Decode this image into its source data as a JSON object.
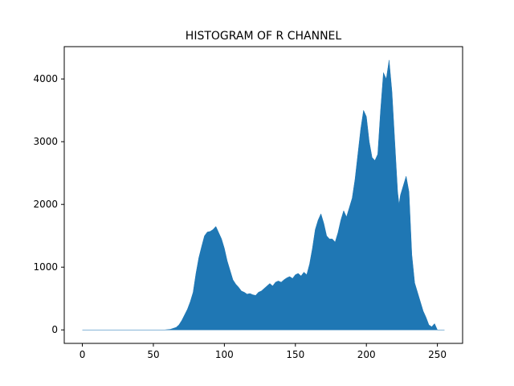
{
  "chart_data": {
    "type": "area",
    "title": "HISTOGRAM OF R CHANNEL",
    "xlabel": "",
    "ylabel": "",
    "xlim": [
      -12.75,
      267.75
    ],
    "ylim": [
      -215,
      4515
    ],
    "xticks": [
      0,
      50,
      100,
      150,
      200,
      250
    ],
    "yticks": [
      0,
      1000,
      2000,
      3000,
      4000
    ],
    "grid": false,
    "fill_color": "#1f77b4",
    "x": [
      0,
      58,
      60,
      62,
      64,
      66,
      68,
      70,
      72,
      74,
      76,
      78,
      80,
      82,
      84,
      86,
      88,
      90,
      92,
      94,
      96,
      98,
      100,
      102,
      104,
      106,
      108,
      110,
      112,
      114,
      116,
      118,
      120,
      122,
      124,
      126,
      128,
      130,
      132,
      134,
      136,
      138,
      140,
      142,
      144,
      146,
      148,
      150,
      152,
      154,
      156,
      158,
      160,
      162,
      164,
      166,
      168,
      170,
      172,
      174,
      176,
      178,
      180,
      182,
      184,
      186,
      188,
      190,
      192,
      194,
      196,
      198,
      200,
      202,
      204,
      206,
      208,
      210,
      212,
      214,
      216,
      218,
      220,
      221,
      222,
      223,
      224,
      226,
      228,
      230,
      232,
      234,
      236,
      238,
      240,
      242,
      244,
      246,
      248,
      250,
      252,
      254,
      255
    ],
    "values": [
      0,
      0,
      5,
      10,
      25,
      40,
      80,
      150,
      240,
      330,
      450,
      600,
      900,
      1150,
      1330,
      1500,
      1560,
      1570,
      1600,
      1650,
      1550,
      1450,
      1300,
      1100,
      950,
      800,
      730,
      680,
      620,
      600,
      570,
      580,
      560,
      550,
      600,
      620,
      660,
      700,
      740,
      700,
      760,
      780,
      760,
      800,
      830,
      850,
      820,
      880,
      900,
      860,
      920,
      880,
      1050,
      1300,
      1600,
      1750,
      1850,
      1700,
      1500,
      1450,
      1450,
      1400,
      1550,
      1750,
      1900,
      1800,
      1950,
      2100,
      2400,
      2800,
      3200,
      3500,
      3400,
      3000,
      2750,
      2700,
      2800,
      3500,
      4100,
      4000,
      4300,
      3800,
      3000,
      2600,
      2200,
      2000,
      2150,
      2300,
      2450,
      2200,
      1200,
      750,
      600,
      450,
      300,
      200,
      80,
      50,
      100,
      0,
      0,
      0,
      0
    ]
  }
}
